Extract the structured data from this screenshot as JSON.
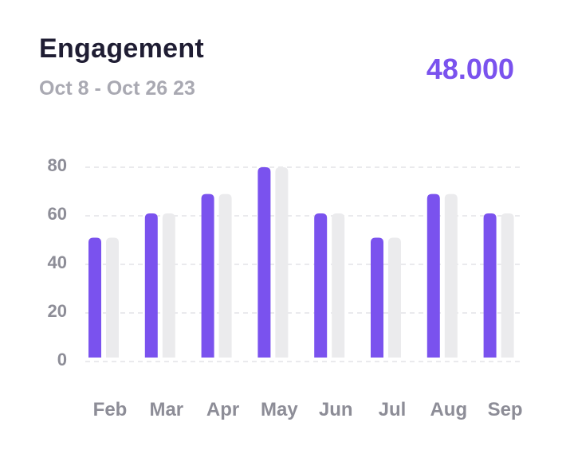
{
  "header": {
    "title": "Engagement",
    "subtitle": "Oct 8 - Oct 26 23",
    "total": "48.000"
  },
  "colors": {
    "primary_bar": "#7a52ee",
    "secondary_bar": "#ebebed",
    "grid": "#e3e3e7"
  },
  "chart_data": {
    "type": "bar",
    "title": "Engagement",
    "categories": [
      "Feb",
      "Mar",
      "Apr",
      "May",
      "Jun",
      "Jul",
      "Aug",
      "Sep"
    ],
    "series": [
      {
        "values": [
          50,
          60,
          68,
          79,
          60,
          50,
          68,
          60
        ]
      },
      {
        "values": [
          50,
          60,
          68,
          79,
          60,
          50,
          68,
          60
        ]
      }
    ],
    "yticks": [
      0,
      20,
      40,
      60,
      80
    ],
    "ylim": [
      0,
      80
    ],
    "grid": true,
    "xlabel": "",
    "ylabel": ""
  }
}
